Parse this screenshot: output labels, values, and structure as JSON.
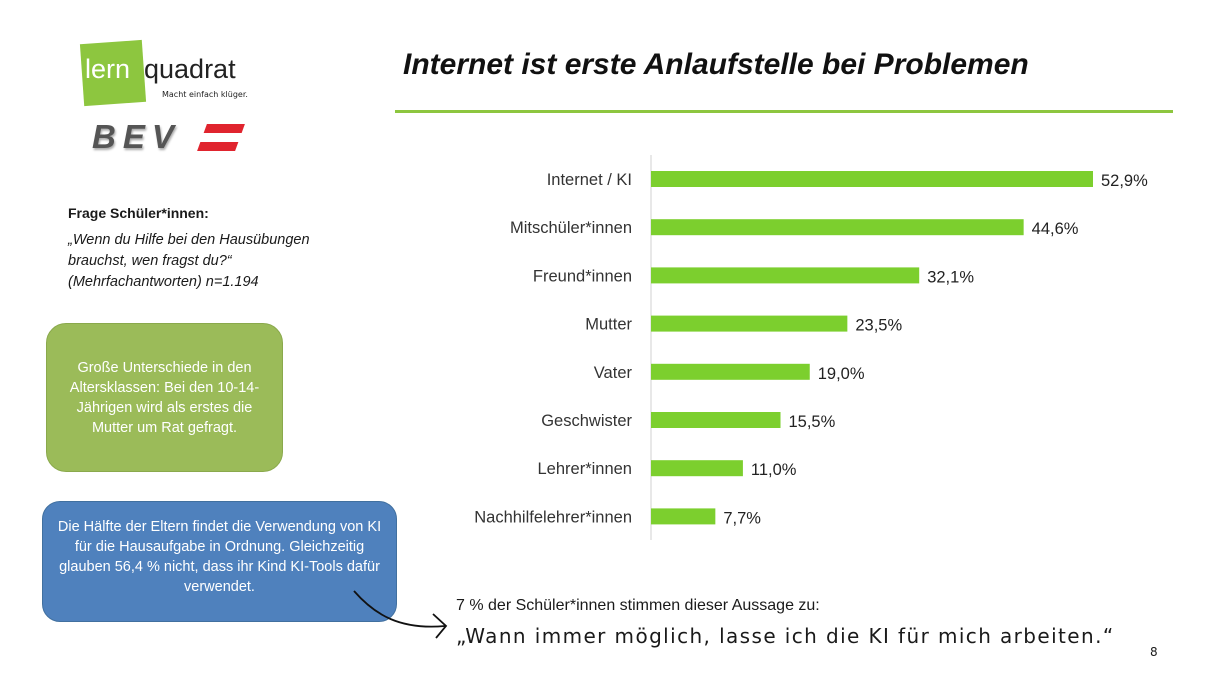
{
  "logos": {
    "lernquadrat": {
      "part1": "lern",
      "part2": "quadrat",
      "tagline": "Macht einfach klüger."
    },
    "bev": "BEV"
  },
  "title": "Internet ist erste Anlaufstelle bei Problemen",
  "question": {
    "heading": "Frage Schüler*innen:",
    "text": "„Wenn du Hilfe bei den Hausübungen brauchst, wen fragst du?“ (Mehrfachantworten) n=1.194"
  },
  "green_box": "Große Unterschiede in den Altersklassen: Bei den 10-14-Jährigen wird als erstes die Mutter um Rat gefragt.",
  "blue_box": "Die Hälfte der Eltern findet die Verwendung von KI für die Hausaufgabe in Ordnung. Gleichzeitig glauben 56,4 % nicht, dass ihr Kind KI-Tools dafür verwendet.",
  "quote_intro": "7 % der Schüler*innen stimmen dieser Aussage zu:",
  "quote": "„Wann immer möglich, lasse ich die KI für mich arbeiten.“",
  "page_number": "8",
  "colors": {
    "bar": "#7ccf2e",
    "accent": "#8dc63f",
    "green_box": "#9bbb59",
    "blue_box": "#4f81bd"
  },
  "chart_data": {
    "type": "bar",
    "orientation": "horizontal",
    "categories": [
      "Internet / KI",
      "Mitschüler*innen",
      "Freund*innen",
      "Mutter",
      "Vater",
      "Geschwister",
      "Lehrer*innen",
      "Nachhilfelehrer*innen"
    ],
    "values": [
      52.9,
      44.6,
      32.1,
      23.5,
      19.0,
      15.5,
      11.0,
      7.7
    ],
    "data_labels": [
      "52,9%",
      "44,6%",
      "32,1%",
      "23,5%",
      "19,0%",
      "15,5%",
      "11,0%",
      "7,7%"
    ],
    "unit": "%",
    "xlim": [
      0,
      60
    ],
    "grid": false,
    "legend": "none"
  }
}
